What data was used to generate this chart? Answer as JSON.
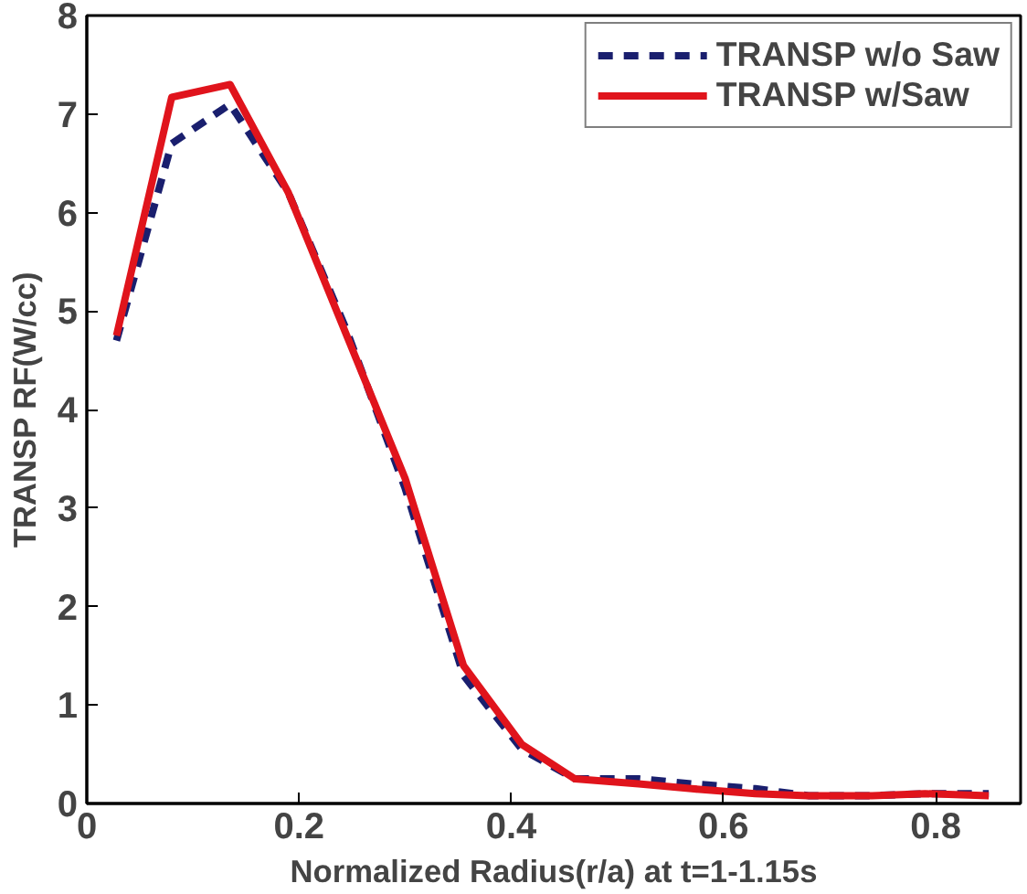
{
  "chart_data": {
    "type": "line",
    "xlabel": "Normalized Radius(r/a) at t=1-1.15s",
    "ylabel": "TRANSP RF(W/cc)",
    "xlim": [
      0,
      0.88
    ],
    "ylim": [
      0,
      8
    ],
    "xticks": [
      0,
      0.2,
      0.4,
      0.6,
      0.8
    ],
    "yticks": [
      0,
      1,
      2,
      3,
      4,
      5,
      6,
      7,
      8
    ],
    "x": [
      0.028,
      0.08,
      0.135,
      0.19,
      0.245,
      0.3,
      0.355,
      0.41,
      0.46,
      0.52,
      0.57,
      0.63,
      0.68,
      0.74,
      0.79,
      0.85
    ],
    "grid": false,
    "legend": "top right",
    "marker": "none",
    "series": [
      {
        "name": "TRANSP w/o Saw",
        "color": "#1a1f6e",
        "line_style": "dashed",
        "values": [
          4.7,
          6.7,
          7.1,
          6.2,
          4.8,
          3.2,
          1.3,
          0.55,
          0.25,
          0.25,
          0.2,
          0.15,
          0.08,
          0.08,
          0.1,
          0.1
        ]
      },
      {
        "name": "TRANSP w/Saw",
        "color": "#e0141c",
        "line_style": "solid",
        "values": [
          4.75,
          7.17,
          7.3,
          6.2,
          4.75,
          3.3,
          1.4,
          0.6,
          0.25,
          0.2,
          0.15,
          0.1,
          0.08,
          0.08,
          0.1,
          0.08
        ]
      }
    ]
  }
}
